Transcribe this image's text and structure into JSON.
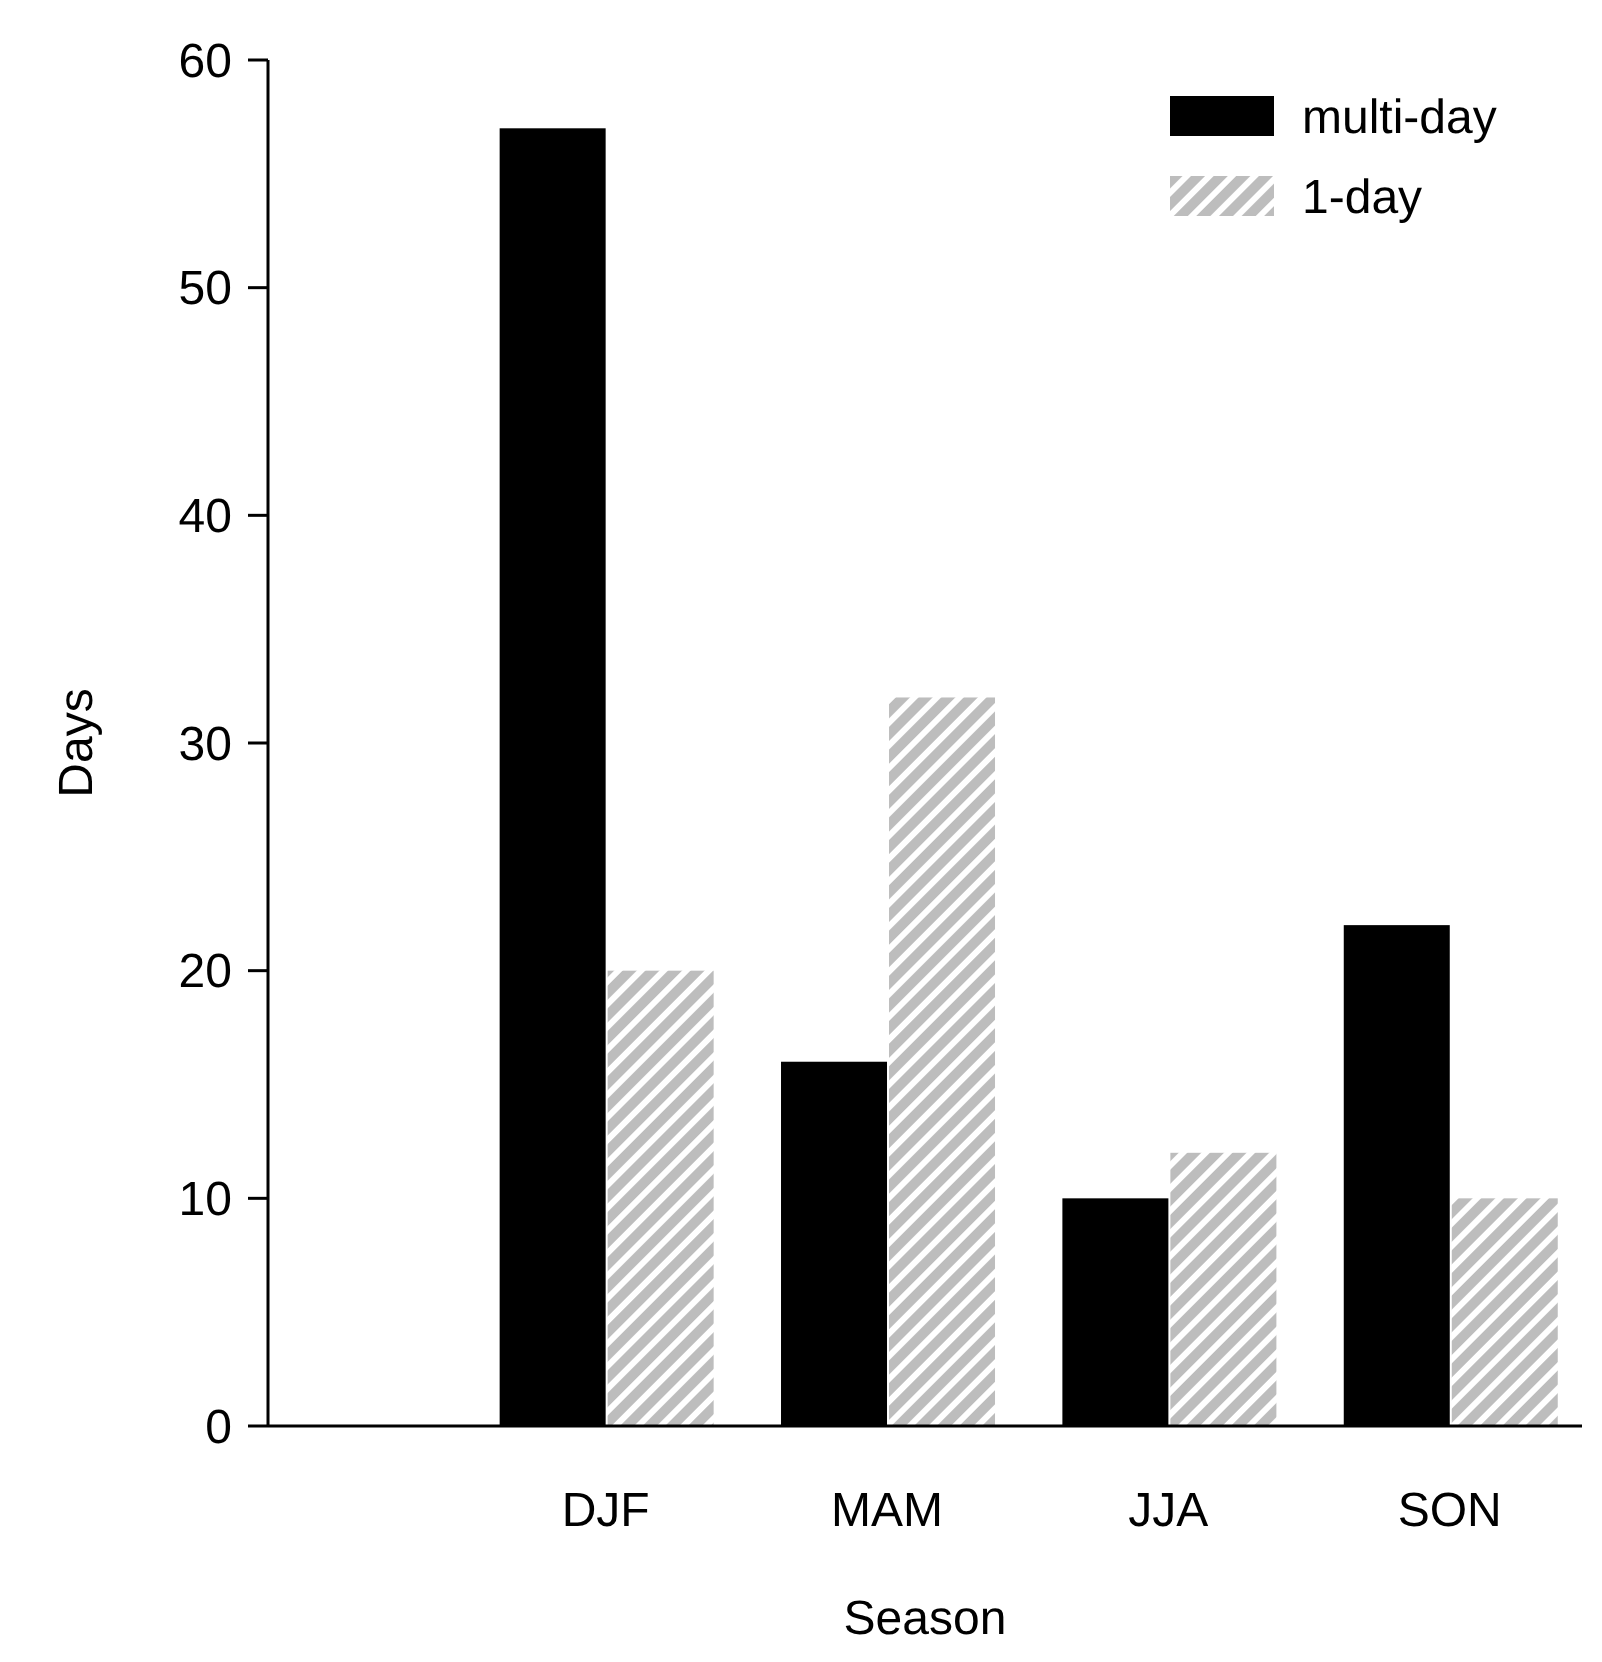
{
  "chart_data": {
    "type": "bar",
    "xlabel": "Season",
    "ylabel": "Days",
    "categories": [
      "DJF",
      "MAM",
      "JJA",
      "SON"
    ],
    "series": [
      {
        "name": "multi-day",
        "color": "#000000",
        "values": [
          57,
          16,
          10,
          22
        ]
      },
      {
        "name": "1-day",
        "color": "#bdbdbd",
        "values": [
          20,
          32,
          12,
          10
        ]
      }
    ],
    "ylim": [
      0,
      60
    ],
    "yticks": [
      0,
      10,
      20,
      30,
      40,
      50,
      60
    ],
    "grid": false,
    "legend": "top right"
  }
}
